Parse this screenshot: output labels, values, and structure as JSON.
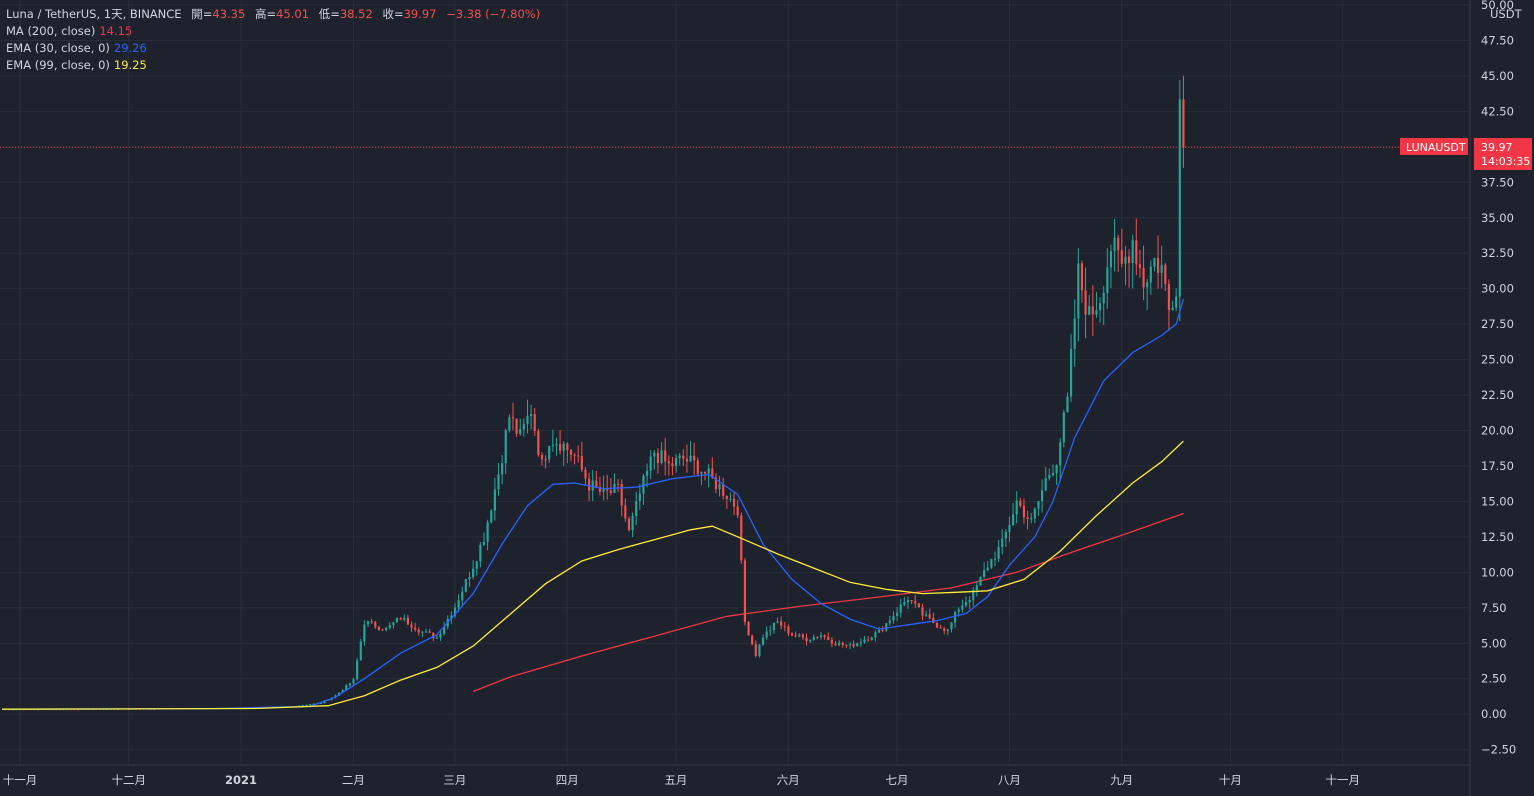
{
  "header": {
    "symbol": "Luna / TetherUS, 1天, BINANCE",
    "open_label": "開",
    "open": "43.35",
    "high_label": "高",
    "high": "45.01",
    "low_label": "低",
    "low": "38.52",
    "close_label": "收",
    "close": "39.97",
    "change": "−3.38 (−7.80%)"
  },
  "indicators": [
    {
      "label": "MA (200, close)",
      "value": "14.15",
      "color": "#f23645"
    },
    {
      "label": "EMA (30, close, 0)",
      "value": "29.26",
      "color": "#2962ff"
    },
    {
      "label": "EMA (99, close, 0)",
      "value": "19.25",
      "color": "#ffeb3b"
    }
  ],
  "price_tag": {
    "symbol": "LUNAUSDT",
    "price": "39.97",
    "countdown": "14:03:35",
    "color": "#f23645"
  },
  "colors": {
    "background": "#1e222d",
    "grid": "#2a2e39",
    "text": "#d1d4dc",
    "up": "#26a69a",
    "down": "#ef5350"
  },
  "chart_data": {
    "type": "candlestick",
    "currency_label": "USDT",
    "ylim": [
      -4.5,
      50
    ],
    "y_ticks": [
      "50.00",
      "47.50",
      "45.00",
      "42.50",
      "40.00",
      "37.50",
      "35.00",
      "32.50",
      "30.00",
      "27.50",
      "25.00",
      "22.50",
      "20.00",
      "17.50",
      "15.00",
      "12.50",
      "10.00",
      "7.50",
      "5.00",
      "2.50",
      "0.00",
      "−2.50"
    ],
    "x_ticks": [
      "十一月",
      "十二月",
      "2021",
      "二月",
      "三月",
      "四月",
      "五月",
      "六月",
      "七月",
      "八月",
      "九月",
      "十月",
      "十一月"
    ],
    "x_tick_start_day": [
      0,
      30,
      61,
      92,
      120,
      151,
      181,
      212,
      242,
      273,
      304,
      334,
      365
    ],
    "last_price": 39.97,
    "anchors": [
      [
        0,
        0.35
      ],
      [
        20,
        0.36
      ],
      [
        40,
        0.38
      ],
      [
        60,
        0.42
      ],
      [
        80,
        0.55
      ],
      [
        88,
        0.8
      ],
      [
        92,
        1.3
      ],
      [
        97,
        2.4
      ],
      [
        100,
        6.5
      ],
      [
        106,
        6.0
      ],
      [
        110,
        6.8
      ],
      [
        116,
        5.8
      ],
      [
        120,
        5.4
      ],
      [
        125,
        7.6
      ],
      [
        130,
        10.5
      ],
      [
        133,
        12.5
      ],
      [
        137,
        17.0
      ],
      [
        140,
        21.0
      ],
      [
        143,
        19.5
      ],
      [
        146,
        21.5
      ],
      [
        149,
        17.5
      ],
      [
        151,
        19.5
      ],
      [
        154,
        19.2
      ],
      [
        158,
        18.2
      ],
      [
        162,
        16.2
      ],
      [
        166,
        15.5
      ],
      [
        170,
        15.8
      ],
      [
        173,
        12.8
      ],
      [
        176,
        15.5
      ],
      [
        180,
        18.5
      ],
      [
        184,
        17.5
      ],
      [
        188,
        18.0
      ],
      [
        192,
        17.5
      ],
      [
        196,
        16.5
      ],
      [
        200,
        15.5
      ],
      [
        203,
        14.5
      ],
      [
        205,
        6.5
      ],
      [
        208,
        4.2
      ],
      [
        210,
        5.5
      ],
      [
        214,
        6.5
      ],
      [
        218,
        5.6
      ],
      [
        222,
        5.3
      ],
      [
        226,
        5.6
      ],
      [
        230,
        5.0
      ],
      [
        234,
        4.8
      ],
      [
        238,
        5.3
      ],
      [
        242,
        5.8
      ],
      [
        246,
        7.0
      ],
      [
        250,
        8.2
      ],
      [
        254,
        7.0
      ],
      [
        258,
        6.3
      ],
      [
        261,
        5.9
      ],
      [
        264,
        7.5
      ],
      [
        268,
        8.5
      ],
      [
        272,
        10.5
      ],
      [
        276,
        12.0
      ],
      [
        280,
        15.0
      ],
      [
        284,
        13.5
      ],
      [
        288,
        16.5
      ],
      [
        291,
        18.0
      ],
      [
        294,
        22.0
      ],
      [
        297,
        31.0
      ],
      [
        300,
        28.0
      ],
      [
        303,
        29.5
      ],
      [
        306,
        33.0
      ],
      [
        309,
        31.5
      ],
      [
        312,
        33.5
      ],
      [
        315,
        30.5
      ],
      [
        318,
        32.0
      ],
      [
        320,
        31.5
      ],
      [
        322,
        28.5
      ],
      [
        324,
        30.5
      ],
      [
        325,
        43.35
      ],
      [
        326,
        39.97
      ]
    ],
    "series": [
      {
        "name": "MA (200, close)",
        "color": "#f23645",
        "start_day": 130,
        "points": [
          [
            130,
            1.6
          ],
          [
            140,
            2.6
          ],
          [
            160,
            4.1
          ],
          [
            180,
            5.5
          ],
          [
            200,
            6.9
          ],
          [
            220,
            7.6
          ],
          [
            240,
            8.2
          ],
          [
            262,
            8.9
          ],
          [
            280,
            10.0
          ],
          [
            295,
            11.4
          ],
          [
            310,
            12.7
          ],
          [
            326,
            14.15
          ]
        ]
      },
      {
        "name": "EMA (30, close, 0)",
        "color": "#2962ff",
        "start_day": 0,
        "points": [
          [
            0,
            0.35
          ],
          [
            60,
            0.4
          ],
          [
            85,
            0.55
          ],
          [
            92,
            1.2
          ],
          [
            100,
            2.5
          ],
          [
            110,
            4.3
          ],
          [
            120,
            5.6
          ],
          [
            130,
            8.5
          ],
          [
            138,
            12.0
          ],
          [
            145,
            14.7
          ],
          [
            152,
            16.2
          ],
          [
            158,
            16.3
          ],
          [
            166,
            15.9
          ],
          [
            175,
            16.0
          ],
          [
            185,
            16.6
          ],
          [
            195,
            16.9
          ],
          [
            203,
            15.5
          ],
          [
            210,
            12.0
          ],
          [
            218,
            9.5
          ],
          [
            226,
            7.8
          ],
          [
            234,
            6.7
          ],
          [
            242,
            6.0
          ],
          [
            250,
            6.3
          ],
          [
            258,
            6.6
          ],
          [
            266,
            7.1
          ],
          [
            272,
            8.3
          ],
          [
            278,
            10.5
          ],
          [
            285,
            12.5
          ],
          [
            290,
            15.0
          ],
          [
            296,
            19.5
          ],
          [
            304,
            23.5
          ],
          [
            312,
            25.5
          ],
          [
            320,
            26.7
          ],
          [
            324,
            27.5
          ],
          [
            326,
            29.26
          ]
        ]
      },
      {
        "name": "EMA (99, close, 0)",
        "color": "#ffeb3b",
        "start_day": 0,
        "points": [
          [
            0,
            0.35
          ],
          [
            70,
            0.4
          ],
          [
            90,
            0.6
          ],
          [
            100,
            1.3
          ],
          [
            110,
            2.4
          ],
          [
            120,
            3.3
          ],
          [
            130,
            4.8
          ],
          [
            140,
            7.0
          ],
          [
            150,
            9.2
          ],
          [
            160,
            10.8
          ],
          [
            170,
            11.6
          ],
          [
            180,
            12.3
          ],
          [
            190,
            13.0
          ],
          [
            196,
            13.25
          ],
          [
            204,
            12.4
          ],
          [
            214,
            11.3
          ],
          [
            224,
            10.3
          ],
          [
            234,
            9.3
          ],
          [
            244,
            8.8
          ],
          [
            254,
            8.5
          ],
          [
            264,
            8.6
          ],
          [
            272,
            8.7
          ],
          [
            282,
            9.5
          ],
          [
            292,
            11.5
          ],
          [
            302,
            14.0
          ],
          [
            312,
            16.3
          ],
          [
            320,
            17.8
          ],
          [
            326,
            19.25
          ]
        ]
      }
    ]
  }
}
